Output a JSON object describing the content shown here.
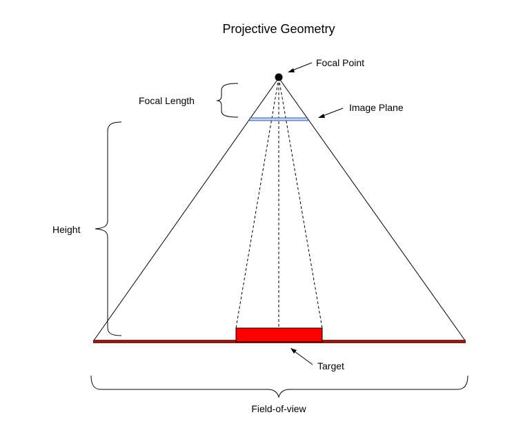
{
  "title": "Projective Geometry",
  "labels": {
    "focal_point": "Focal Point",
    "focal_length": "Focal Length",
    "image_plane": "Image Plane",
    "height": "Height",
    "target": "Target",
    "field_of_view": "Field-of-view"
  },
  "colors": {
    "ground": "#8b1e12",
    "target": "#ff0000",
    "image_plane": "#c9d7ee",
    "lines": "#000000"
  }
}
